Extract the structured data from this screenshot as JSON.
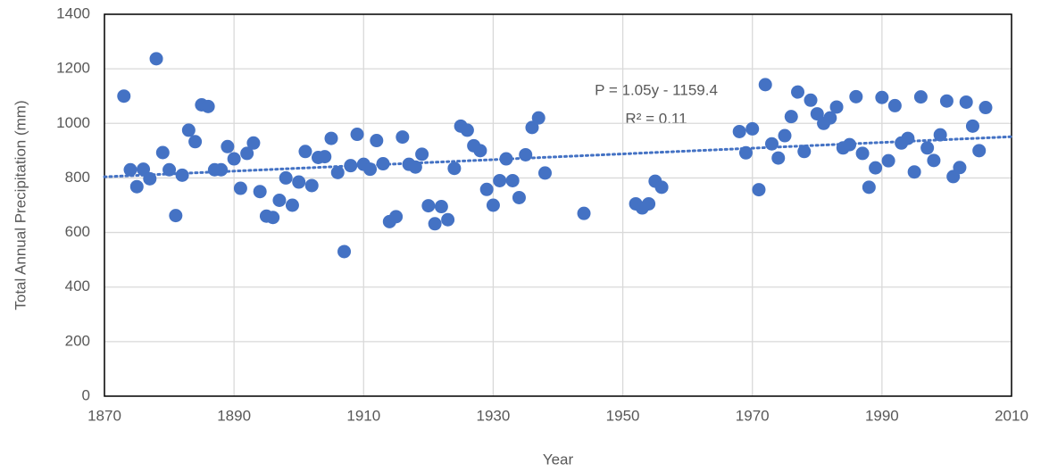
{
  "chart_data": {
    "type": "scatter",
    "x_label": "Year",
    "y_label": "Total Annual Precipitation (mm)",
    "xlim": [
      1870,
      2010
    ],
    "xticks": [
      1870,
      1890,
      1910,
      1930,
      1950,
      1970,
      1990,
      2010
    ],
    "ylim": [
      0,
      1400
    ],
    "yticks": [
      0,
      200,
      400,
      600,
      800,
      1000,
      1200,
      1400
    ],
    "grid": true,
    "series": [
      {
        "color": "#4472c4",
        "x": [
          1873,
          1874,
          1875,
          1876,
          1877,
          1878,
          1879,
          1880,
          1881,
          1882,
          1883,
          1884,
          1885,
          1886,
          1887,
          1888,
          1889,
          1890,
          1891,
          1892,
          1893,
          1894,
          1895,
          1896,
          1897,
          1898,
          1899,
          1900,
          1901,
          1902,
          1903,
          1904,
          1905,
          1906,
          1907,
          1908,
          1909,
          1910,
          1911,
          1912,
          1913,
          1914,
          1915,
          1916,
          1917,
          1918,
          1919,
          1920,
          1921,
          1922,
          1923,
          1924,
          1925,
          1926,
          1927,
          1928,
          1929,
          1930,
          1931,
          1932,
          1933,
          1934,
          1935,
          1936,
          1937,
          1938,
          1944,
          1952,
          1953,
          1954,
          1955,
          1956,
          1968,
          1969,
          1970,
          1971,
          1972,
          1973,
          1974,
          1975,
          1976,
          1977,
          1978,
          1979,
          1980,
          1981,
          1982,
          1983,
          1984,
          1985,
          1986,
          1987,
          1988,
          1989,
          1990,
          1991,
          1992,
          1993,
          1994,
          1995,
          1996,
          1997,
          1998,
          1999,
          2000,
          2001,
          2002,
          2003,
          2004,
          2005,
          2006
        ],
        "values": [
          1100,
          830,
          768,
          832,
          797,
          1237,
          893,
          830,
          662,
          810,
          975,
          933,
          1068,
          1062,
          830,
          830,
          915,
          870,
          762,
          890,
          928,
          750,
          660,
          655,
          718,
          800,
          700,
          785,
          897,
          772,
          875,
          878,
          945,
          820,
          530,
          845,
          960,
          850,
          832,
          937,
          852,
          640,
          658,
          950,
          850,
          840,
          887,
          698,
          632,
          695,
          647,
          835,
          990,
          975,
          918,
          900,
          758,
          700,
          790,
          870,
          790,
          728,
          885,
          985,
          1020,
          818,
          670,
          705,
          690,
          705,
          788,
          766,
          970,
          892,
          980,
          757,
          1142,
          925,
          873,
          955,
          1025,
          1115,
          897,
          1085,
          1035,
          1000,
          1020,
          1060,
          910,
          922,
          1098,
          890,
          766,
          837,
          1095,
          863,
          1065,
          928,
          945,
          822,
          1097,
          910,
          864,
          958,
          1082,
          805,
          838,
          1078,
          990,
          900,
          1058
        ]
      }
    ],
    "trendline": {
      "slope": 1.05,
      "intercept": -1159.4,
      "style": "dotted",
      "color": "#4472c4",
      "label": "P = 1.05y - 1159.4",
      "r2_label": "R² = 0.11"
    }
  }
}
